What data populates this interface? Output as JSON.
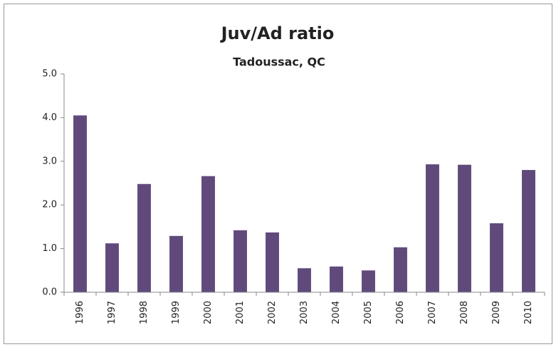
{
  "chart_data": {
    "type": "bar",
    "title": "Juv/Ad ratio",
    "subtitle": "Tadoussac, QC",
    "categories": [
      "1996",
      "1997",
      "1998",
      "1999",
      "2000",
      "2001",
      "2002",
      "2003",
      "2004",
      "2005",
      "2006",
      "2007",
      "2008",
      "2009",
      "2010"
    ],
    "values": [
      4.05,
      1.12,
      2.48,
      1.29,
      2.66,
      1.42,
      1.37,
      0.55,
      0.59,
      0.5,
      1.03,
      2.93,
      2.92,
      1.58,
      2.8
    ],
    "color": "#604a7b",
    "ylim": [
      0,
      5
    ],
    "yticks": [
      {
        "value": 0,
        "label": "0.0"
      },
      {
        "value": 1,
        "label": "1.0"
      },
      {
        "value": 2,
        "label": "2.0"
      },
      {
        "value": 3,
        "label": "3.0"
      },
      {
        "value": 4,
        "label": "4.0"
      },
      {
        "value": 5,
        "label": "5.0"
      }
    ],
    "grid": false
  }
}
